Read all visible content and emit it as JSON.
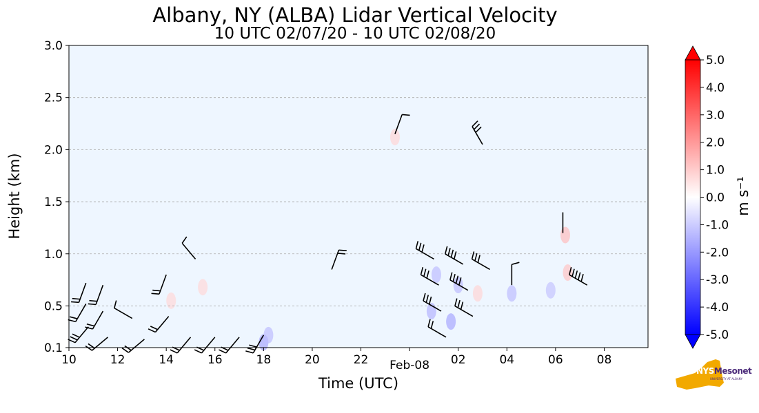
{
  "chart_data": {
    "type": "heatmap",
    "title": "Albany, NY (ALBA) Lidar Vertical Velocity",
    "subtitle": "10 UTC 02/07/20 - 10 UTC 02/08/20",
    "xlabel": "Time (UTC)",
    "ylabel": "Height (km)",
    "x_ticks": [
      "10",
      "12",
      "14",
      "16",
      "18",
      "20",
      "22",
      "Feb-08",
      "02",
      "04",
      "06",
      "08"
    ],
    "y_ticks": [
      "0.1",
      "0.5",
      "1.0",
      "1.5",
      "2.0",
      "2.5",
      "3.0"
    ],
    "ylim": [
      0.1,
      3.0
    ],
    "xlim_hours_utc": [
      10,
      33.8
    ],
    "grid": "horizontal dashed",
    "background_color": "#eef6ff",
    "colorbar": {
      "label": "m s⁻¹",
      "range": [
        -5.0,
        5.0
      ],
      "ticks": [
        "5.0",
        "4.0",
        "3.0",
        "2.0",
        "1.0",
        "0.0",
        "-1.0",
        "-2.0",
        "-3.0",
        "-4.0",
        "-5.0"
      ],
      "colors": [
        "#0000ff",
        "#ffffff",
        "#ff0000"
      ],
      "extend": "both"
    },
    "velocity_patches": [
      {
        "t": 18.0,
        "h": 0.15,
        "v": -1.5
      },
      {
        "t": 18.2,
        "h": 0.22,
        "v": -1.0
      },
      {
        "t": 24.9,
        "h": 0.45,
        "v": -1.2
      },
      {
        "t": 25.1,
        "h": 0.8,
        "v": -1.0
      },
      {
        "t": 25.7,
        "h": 0.35,
        "v": -1.5
      },
      {
        "t": 26.0,
        "h": 0.7,
        "v": -1.0
      },
      {
        "t": 26.8,
        "h": 0.62,
        "v": 0.4
      },
      {
        "t": 28.2,
        "h": 0.62,
        "v": -1.0
      },
      {
        "t": 29.8,
        "h": 0.65,
        "v": -0.8
      },
      {
        "t": 30.4,
        "h": 1.18,
        "v": 1.0
      },
      {
        "t": 30.5,
        "h": 0.82,
        "v": 0.8
      },
      {
        "t": 23.4,
        "h": 2.12,
        "v": 0.4
      },
      {
        "t": 14.2,
        "h": 0.55,
        "v": 0.3
      },
      {
        "t": 15.5,
        "h": 0.68,
        "v": 0.3
      }
    ],
    "wind_barbs": [
      {
        "t": 10.7,
        "h": 0.72,
        "dir": 200,
        "barbs": 2
      },
      {
        "t": 10.7,
        "h": 0.52,
        "dir": 210,
        "barbs": 2
      },
      {
        "t": 10.8,
        "h": 0.3,
        "dir": 220,
        "barbs": 3
      },
      {
        "t": 11.4,
        "h": 0.7,
        "dir": 200,
        "barbs": 2
      },
      {
        "t": 11.4,
        "h": 0.45,
        "dir": 210,
        "barbs": 2
      },
      {
        "t": 11.6,
        "h": 0.2,
        "dir": 230,
        "barbs": 2
      },
      {
        "t": 12.6,
        "h": 0.38,
        "dir": 300,
        "barbs": 1
      },
      {
        "t": 13.1,
        "h": 0.18,
        "dir": 230,
        "barbs": 2
      },
      {
        "t": 14.0,
        "h": 0.8,
        "dir": 200,
        "barbs": 2
      },
      {
        "t": 14.1,
        "h": 0.4,
        "dir": 220,
        "barbs": 2
      },
      {
        "t": 15.2,
        "h": 0.95,
        "dir": 320,
        "barbs": 1
      },
      {
        "t": 15.0,
        "h": 0.2,
        "dir": 220,
        "barbs": 2
      },
      {
        "t": 16.0,
        "h": 0.2,
        "dir": 220,
        "barbs": 2
      },
      {
        "t": 17.0,
        "h": 0.2,
        "dir": 220,
        "barbs": 2
      },
      {
        "t": 18.0,
        "h": 0.22,
        "dir": 210,
        "barbs": 3
      },
      {
        "t": 20.8,
        "h": 0.85,
        "dir": 20,
        "barbs": 2
      },
      {
        "t": 23.4,
        "h": 2.15,
        "dir": 20,
        "barbs": 1
      },
      {
        "t": 25.0,
        "h": 0.95,
        "dir": 300,
        "barbs": 3
      },
      {
        "t": 25.2,
        "h": 0.7,
        "dir": 300,
        "barbs": 3
      },
      {
        "t": 25.3,
        "h": 0.45,
        "dir": 300,
        "barbs": 3
      },
      {
        "t": 25.5,
        "h": 0.2,
        "dir": 300,
        "barbs": 2
      },
      {
        "t": 26.2,
        "h": 0.9,
        "dir": 300,
        "barbs": 4
      },
      {
        "t": 26.4,
        "h": 0.65,
        "dir": 300,
        "barbs": 4
      },
      {
        "t": 26.6,
        "h": 0.4,
        "dir": 300,
        "barbs": 3
      },
      {
        "t": 27.0,
        "h": 2.05,
        "dir": 330,
        "barbs": 3
      },
      {
        "t": 27.3,
        "h": 0.85,
        "dir": 300,
        "barbs": 3
      },
      {
        "t": 28.2,
        "h": 0.7,
        "dir": 0,
        "barbs": 1
      },
      {
        "t": 31.3,
        "h": 0.7,
        "dir": 300,
        "barbs": 5
      },
      {
        "t": 30.3,
        "h": 1.2,
        "dir": 0,
        "barbs": 0
      }
    ]
  },
  "logo": {
    "name": "NYS Mesonet",
    "prefix": "NYS",
    "word": "Mesonet",
    "sub": "UNIVERSITY AT ALBANY"
  }
}
